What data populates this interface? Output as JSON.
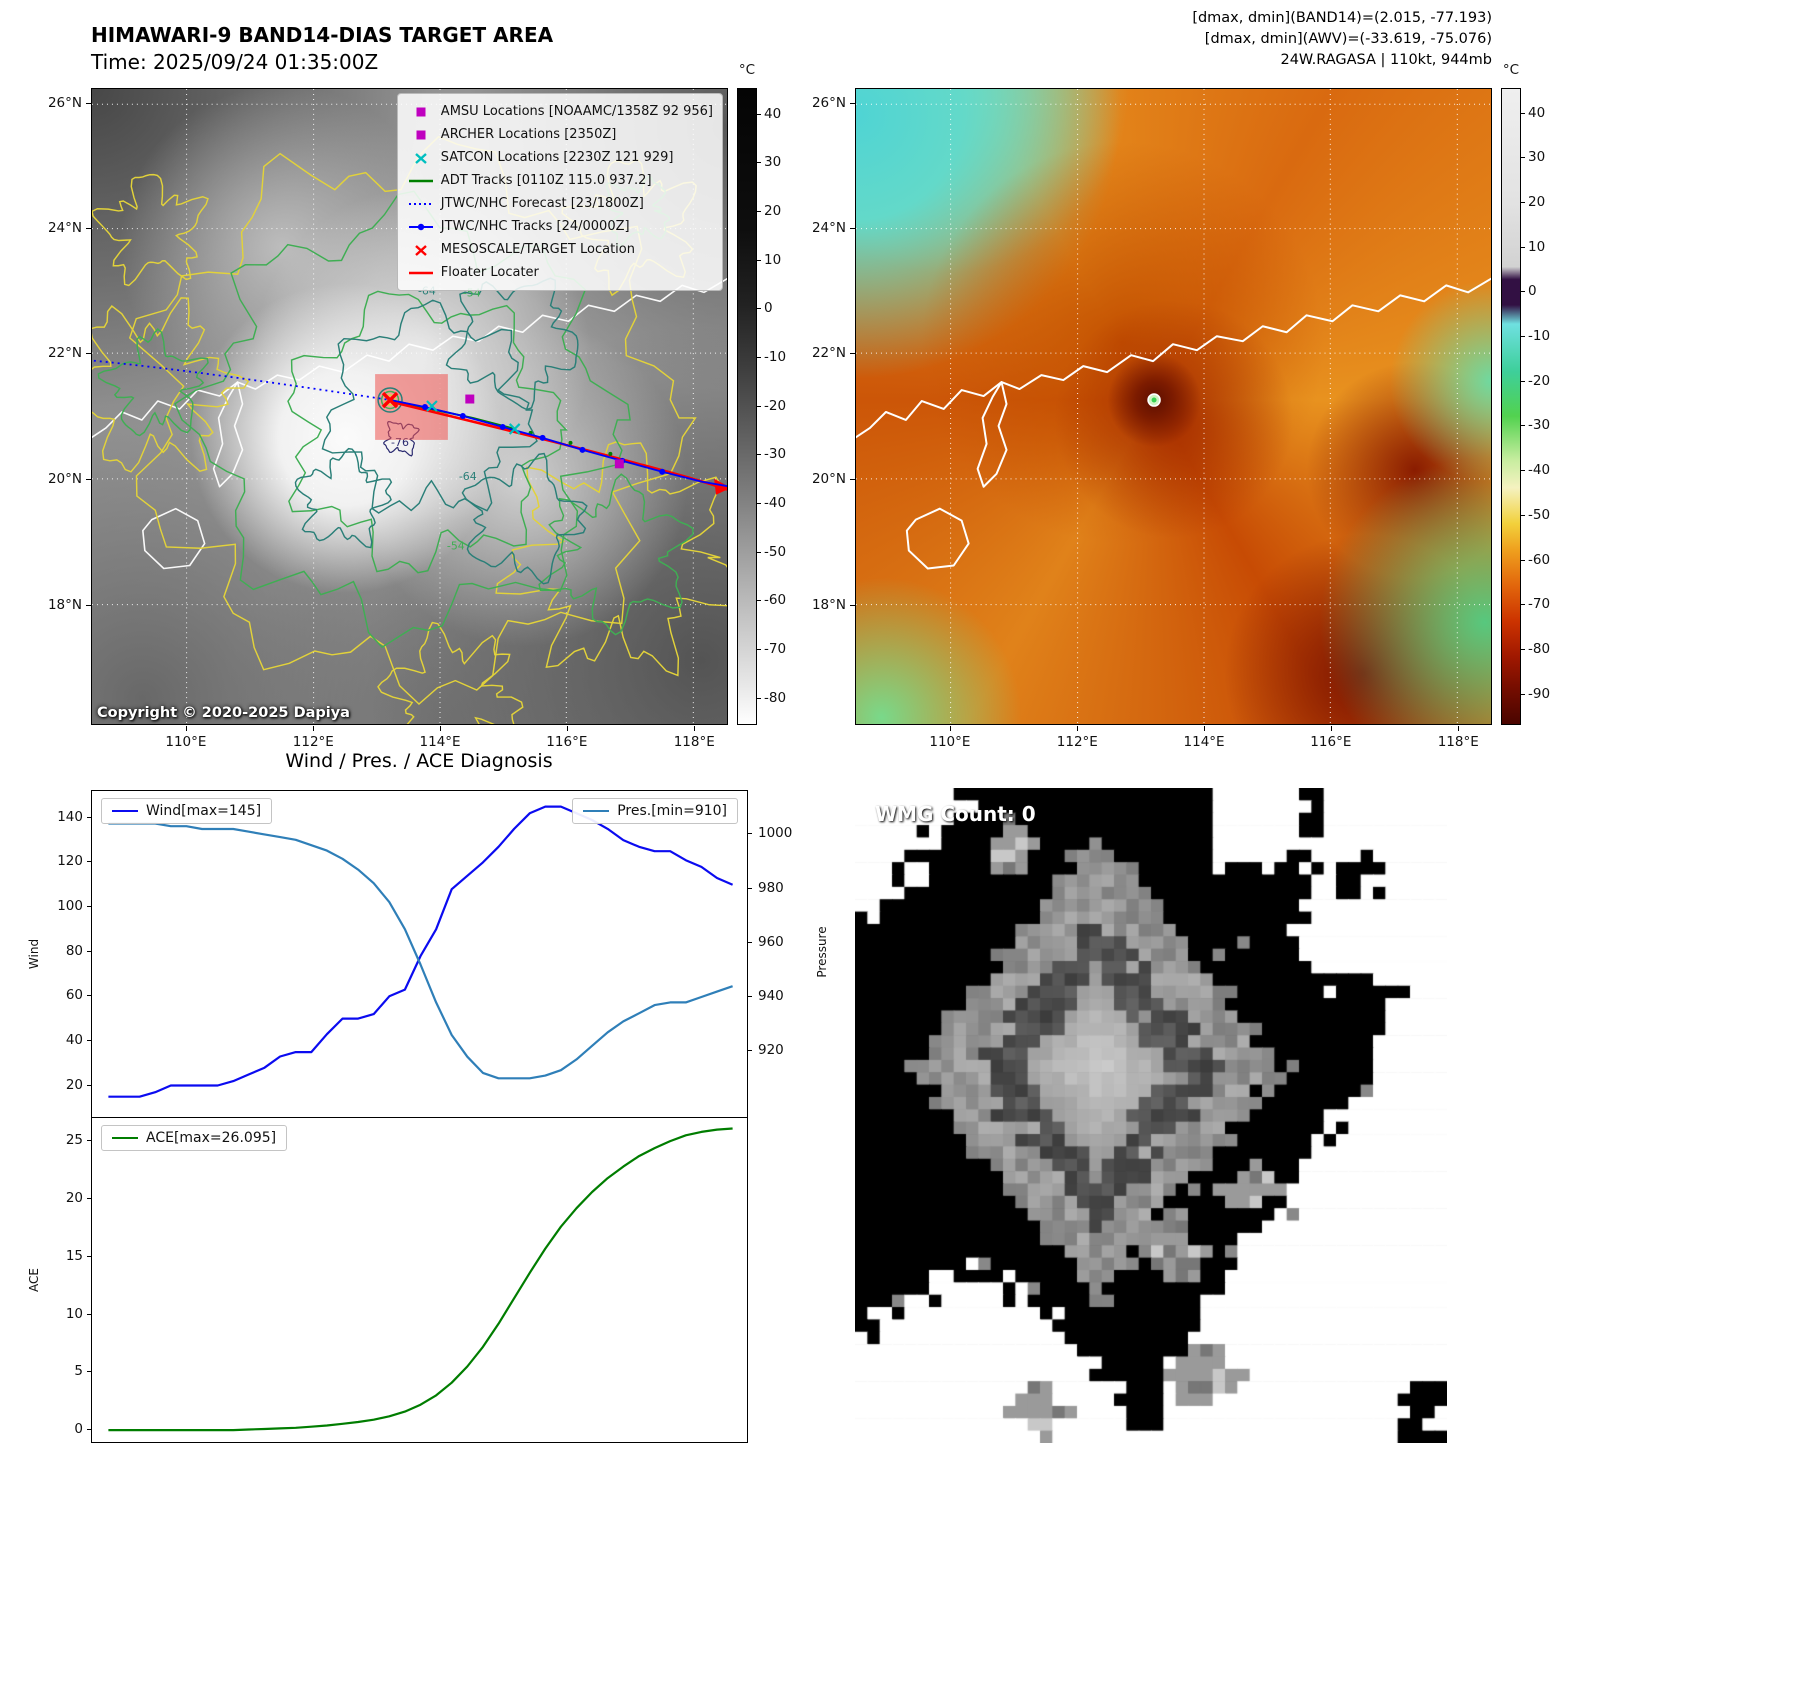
{
  "panel1": {
    "title": "HIMAWARI-9 BAND14-DIAS TARGET AREA",
    "subtitle": "Time: 2025/09/24 01:35:00Z",
    "copyright": "Copyright © 2020-2025 Dapiya",
    "legend": [
      {
        "label": "AMSU Locations [NOAAMC/1358Z 92 956]",
        "marker": "square",
        "color": "#bf00bf"
      },
      {
        "label": "ARCHER Locations [2350Z]",
        "marker": "square",
        "color": "#bf00bf"
      },
      {
        "label": "SATCON Locations [2230Z 121 929]",
        "marker": "x",
        "color": "#00bfbf"
      },
      {
        "label": "ADT Tracks [0110Z 115.0 937.2]",
        "marker": "line",
        "color": "#008000"
      },
      {
        "label": "JTWC/NHC Forecast [23/1800Z]",
        "marker": "dotted",
        "color": "#0000ff"
      },
      {
        "label": "JTWC/NHC Tracks [24/0000Z]",
        "marker": "line-dot",
        "color": "#0000ff"
      },
      {
        "label": "MESOSCALE/TARGET Location",
        "marker": "x",
        "color": "#ff0000"
      },
      {
        "label": "Floater Locater",
        "marker": "line",
        "color": "#ff0000"
      }
    ],
    "lat_ticks": [
      "26°N",
      "24°N",
      "22°N",
      "20°N",
      "18°N"
    ],
    "lon_ticks": [
      "110°E",
      "112°E",
      "114°E",
      "116°E",
      "118°E"
    ],
    "contour_labels": [
      "-64",
      "-54",
      "-76",
      "-64",
      "-54"
    ],
    "colorbar": {
      "unit": "°C",
      "ticks": [
        40,
        30,
        20,
        10,
        0,
        -10,
        -20,
        -30,
        -40,
        -50,
        -60,
        -70,
        -80
      ]
    }
  },
  "panel2": {
    "header_line1": "[dmax, dmin](BAND14)=(2.015, -77.193)",
    "header_line2": "[dmax, dmin](AWV)=(-33.619, -75.076)",
    "header_line3": "24W.RAGASA | 110kt, 944mb",
    "lat_ticks": [
      "26°N",
      "24°N",
      "22°N",
      "20°N",
      "18°N"
    ],
    "lon_ticks": [
      "110°E",
      "112°E",
      "114°E",
      "116°E",
      "118°E"
    ],
    "colorbar": {
      "unit": "°C",
      "ticks": [
        40,
        30,
        20,
        10,
        0,
        -10,
        -20,
        -30,
        -40,
        -50,
        -60,
        -70,
        -80,
        -90
      ]
    }
  },
  "panel3": {
    "title": "Wind / Pres. / ACE Diagnosis"
  },
  "panel4": {
    "wmg_label": "WMG Count: 0"
  },
  "chart_data": [
    {
      "type": "line",
      "title": "Wind / Pres. / ACE Diagnosis",
      "ylabel_left": "Wind",
      "ylabel_right": "Pressure",
      "ylim_left": [
        5,
        152
      ],
      "ylim_right": [
        895,
        1016
      ],
      "yticks_left": [
        20,
        40,
        60,
        80,
        100,
        120,
        140
      ],
      "yticks_right": [
        920,
        940,
        960,
        980,
        1000
      ],
      "legend": [
        {
          "name": "Wind[max=145]",
          "color": "#0b0bf0",
          "position": "top-left"
        },
        {
          "name": "Pres.[min=910]",
          "color": "#2f7fb8",
          "position": "top-right"
        }
      ],
      "series": [
        {
          "name": "Wind",
          "axis": "left",
          "color": "#0b0bf0",
          "values": [
            15,
            15,
            15,
            17,
            20,
            20,
            20,
            20,
            22,
            25,
            28,
            33,
            35,
            35,
            43,
            50,
            50,
            52,
            60,
            63,
            78,
            90,
            108,
            114,
            120,
            127,
            135,
            142,
            145,
            145,
            142,
            139,
            135,
            130,
            127,
            125,
            125,
            121,
            118,
            113,
            110
          ]
        },
        {
          "name": "Pressure",
          "axis": "right",
          "color": "#2f7fb8",
          "values": [
            1004,
            1004,
            1004,
            1004,
            1003,
            1003,
            1002,
            1002,
            1002,
            1001,
            1000,
            999,
            998,
            996,
            994,
            991,
            987,
            982,
            975,
            965,
            952,
            938,
            926,
            918,
            912,
            910,
            910,
            910,
            911,
            913,
            917,
            922,
            927,
            931,
            934,
            937,
            938,
            938,
            940,
            942,
            944
          ]
        }
      ]
    },
    {
      "type": "line",
      "ylabel": "ACE",
      "ylim": [
        -1.2,
        27
      ],
      "yticks": [
        0,
        5,
        10,
        15,
        20,
        25
      ],
      "legend": [
        {
          "name": "ACE[max=26.095]",
          "color": "#007d00",
          "position": "top-left"
        }
      ],
      "series": [
        {
          "name": "ACE",
          "color": "#007d00",
          "values": [
            0,
            0,
            0,
            0,
            0,
            0,
            0,
            0,
            0,
            0.05,
            0.1,
            0.15,
            0.2,
            0.3,
            0.4,
            0.55,
            0.7,
            0.9,
            1.2,
            1.6,
            2.2,
            3,
            4.1,
            5.5,
            7.2,
            9.2,
            11.4,
            13.6,
            15.7,
            17.6,
            19.2,
            20.6,
            21.8,
            22.8,
            23.7,
            24.4,
            25,
            25.5,
            25.8,
            26,
            26.095
          ]
        }
      ]
    }
  ]
}
